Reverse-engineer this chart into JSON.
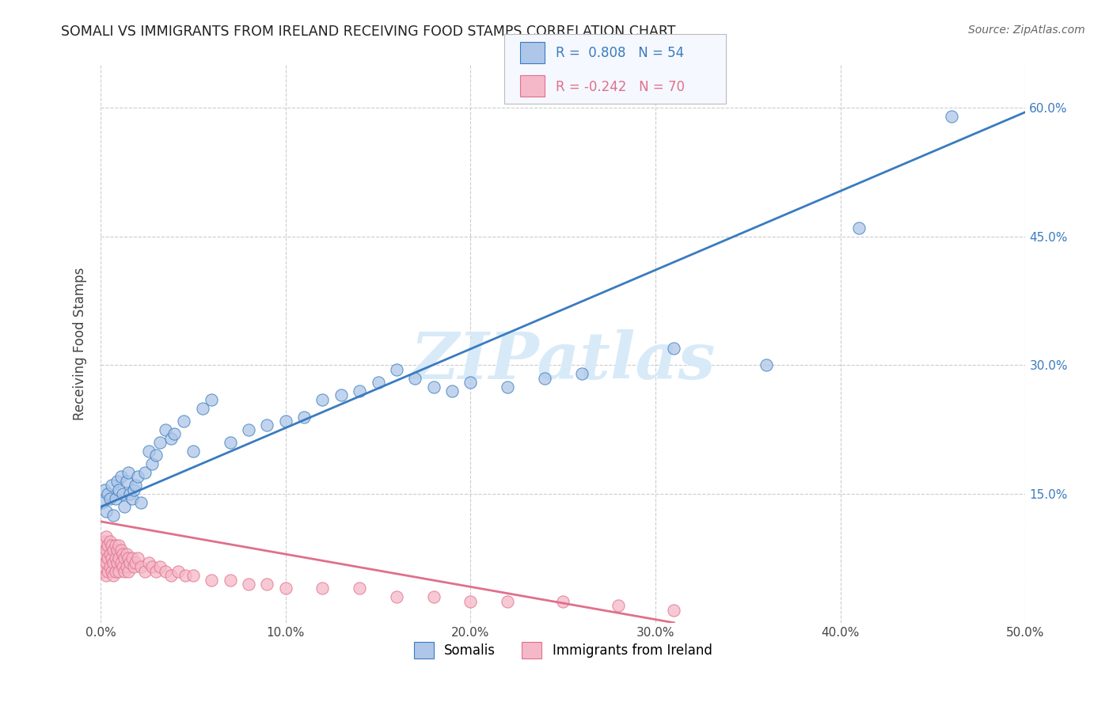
{
  "title": "SOMALI VS IMMIGRANTS FROM IRELAND RECEIVING FOOD STAMPS CORRELATION CHART",
  "source": "Source: ZipAtlas.com",
  "ylabel": "Receiving Food Stamps",
  "xlim": [
    0.0,
    0.5
  ],
  "ylim": [
    0.0,
    0.65
  ],
  "xtick_labels": [
    "0.0%",
    "10.0%",
    "20.0%",
    "30.0%",
    "40.0%",
    "50.0%"
  ],
  "xtick_vals": [
    0.0,
    0.1,
    0.2,
    0.3,
    0.4,
    0.5
  ],
  "ytick_labels": [
    "15.0%",
    "30.0%",
    "45.0%",
    "60.0%"
  ],
  "ytick_vals": [
    0.15,
    0.3,
    0.45,
    0.6
  ],
  "grid_color": "#cccccc",
  "background_color": "#ffffff",
  "somali_color": "#aec6e8",
  "ireland_color": "#f5b8c8",
  "somali_line_color": "#3a7bbf",
  "ireland_line_color": "#e0708a",
  "watermark_color": "#d8eaf8",
  "legend_box_color": "#f5f8ff",
  "R_somali": 0.808,
  "N_somali": 54,
  "R_ireland": -0.242,
  "N_ireland": 70,
  "legend_label_somali": "Somalis",
  "legend_label_ireland": "Immigrants from Ireland",
  "somali_scatter_x": [
    0.001,
    0.002,
    0.003,
    0.004,
    0.005,
    0.006,
    0.007,
    0.008,
    0.009,
    0.01,
    0.011,
    0.012,
    0.013,
    0.014,
    0.015,
    0.016,
    0.017,
    0.018,
    0.019,
    0.02,
    0.022,
    0.024,
    0.026,
    0.028,
    0.03,
    0.032,
    0.035,
    0.038,
    0.04,
    0.045,
    0.05,
    0.055,
    0.06,
    0.07,
    0.08,
    0.09,
    0.1,
    0.11,
    0.12,
    0.13,
    0.14,
    0.15,
    0.16,
    0.17,
    0.18,
    0.19,
    0.2,
    0.22,
    0.24,
    0.26,
    0.31,
    0.36,
    0.41,
    0.46
  ],
  "somali_scatter_y": [
    0.14,
    0.155,
    0.13,
    0.15,
    0.145,
    0.16,
    0.125,
    0.145,
    0.165,
    0.155,
    0.17,
    0.15,
    0.135,
    0.165,
    0.175,
    0.15,
    0.145,
    0.155,
    0.16,
    0.17,
    0.14,
    0.175,
    0.2,
    0.185,
    0.195,
    0.21,
    0.225,
    0.215,
    0.22,
    0.235,
    0.2,
    0.25,
    0.26,
    0.21,
    0.225,
    0.23,
    0.235,
    0.24,
    0.26,
    0.265,
    0.27,
    0.28,
    0.295,
    0.285,
    0.275,
    0.27,
    0.28,
    0.275,
    0.285,
    0.29,
    0.32,
    0.3,
    0.46,
    0.59
  ],
  "ireland_scatter_x": [
    0.001,
    0.001,
    0.001,
    0.002,
    0.002,
    0.002,
    0.003,
    0.003,
    0.003,
    0.003,
    0.004,
    0.004,
    0.004,
    0.005,
    0.005,
    0.005,
    0.006,
    0.006,
    0.006,
    0.007,
    0.007,
    0.007,
    0.008,
    0.008,
    0.008,
    0.009,
    0.009,
    0.01,
    0.01,
    0.01,
    0.011,
    0.011,
    0.012,
    0.012,
    0.013,
    0.013,
    0.014,
    0.014,
    0.015,
    0.015,
    0.016,
    0.017,
    0.018,
    0.019,
    0.02,
    0.022,
    0.024,
    0.026,
    0.028,
    0.03,
    0.032,
    0.035,
    0.038,
    0.042,
    0.046,
    0.05,
    0.06,
    0.07,
    0.08,
    0.09,
    0.1,
    0.12,
    0.14,
    0.16,
    0.18,
    0.2,
    0.22,
    0.25,
    0.28,
    0.31
  ],
  "ireland_scatter_y": [
    0.09,
    0.075,
    0.06,
    0.095,
    0.08,
    0.065,
    0.1,
    0.085,
    0.07,
    0.055,
    0.09,
    0.075,
    0.06,
    0.095,
    0.08,
    0.065,
    0.09,
    0.075,
    0.06,
    0.085,
    0.07,
    0.055,
    0.09,
    0.075,
    0.06,
    0.085,
    0.07,
    0.09,
    0.075,
    0.06,
    0.085,
    0.07,
    0.08,
    0.065,
    0.075,
    0.06,
    0.08,
    0.065,
    0.075,
    0.06,
    0.07,
    0.075,
    0.065,
    0.07,
    0.075,
    0.065,
    0.06,
    0.07,
    0.065,
    0.06,
    0.065,
    0.06,
    0.055,
    0.06,
    0.055,
    0.055,
    0.05,
    0.05,
    0.045,
    0.045,
    0.04,
    0.04,
    0.04,
    0.03,
    0.03,
    0.025,
    0.025,
    0.025,
    0.02,
    0.015
  ],
  "somali_line_x": [
    0.0,
    0.5
  ],
  "somali_line_y": [
    0.135,
    0.595
  ],
  "ireland_line_x": [
    0.0,
    0.31
  ],
  "ireland_line_y": [
    0.118,
    0.0
  ]
}
